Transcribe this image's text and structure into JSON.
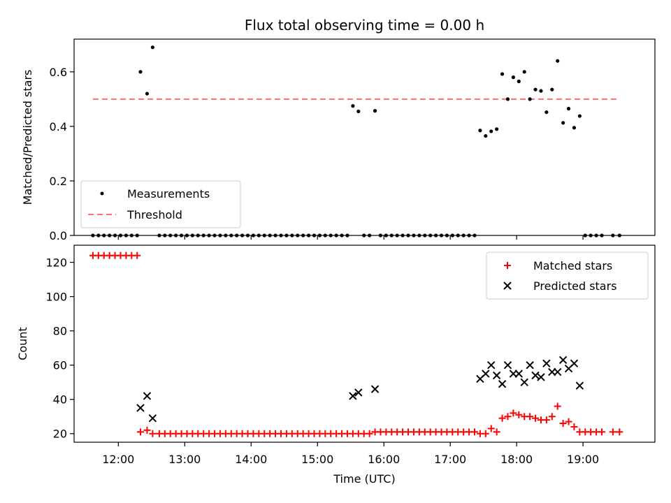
{
  "chart_data": [
    {
      "type": "scatter",
      "title": "Flux total observing time = 0.00 h",
      "xlabel": "",
      "ylabel": "Matched/Predicted stars",
      "xlim": [
        "11:20",
        "20:05"
      ],
      "ylim": [
        0,
        0.72
      ],
      "yticks": [
        "0.0",
        "0.2",
        "0.4",
        "0.6"
      ],
      "legend": {
        "position": "lower-left",
        "entries": [
          "Measurements",
          "Threshold"
        ]
      },
      "colors": {
        "measurements": "#000000",
        "threshold": "#ff6f6f"
      },
      "threshold": {
        "name": "Threshold",
        "value": 0.5,
        "x_range": [
          "11:37",
          "19:33"
        ]
      },
      "series": [
        {
          "name": "Measurements",
          "marker": "dot",
          "points": [
            [
              "11:37",
              0
            ],
            [
              "11:42",
              0
            ],
            [
              "11:47",
              0
            ],
            [
              "11:52",
              0
            ],
            [
              "11:57",
              0
            ],
            [
              "12:02",
              0
            ],
            [
              "12:07",
              0
            ],
            [
              "12:12",
              0
            ],
            [
              "12:17",
              0
            ],
            [
              "12:20",
              0.6
            ],
            [
              "12:26",
              0.52
            ],
            [
              "12:31",
              0.69
            ],
            [
              "12:37",
              0
            ],
            [
              "12:42",
              0
            ],
            [
              "12:47",
              0
            ],
            [
              "12:52",
              0
            ],
            [
              "12:57",
              0
            ],
            [
              "13:02",
              0
            ],
            [
              "13:07",
              0
            ],
            [
              "13:12",
              0
            ],
            [
              "13:17",
              0
            ],
            [
              "13:22",
              0
            ],
            [
              "13:27",
              0
            ],
            [
              "13:32",
              0
            ],
            [
              "13:37",
              0
            ],
            [
              "13:42",
              0
            ],
            [
              "13:47",
              0
            ],
            [
              "13:52",
              0
            ],
            [
              "13:57",
              0
            ],
            [
              "14:02",
              0
            ],
            [
              "14:07",
              0
            ],
            [
              "14:12",
              0
            ],
            [
              "14:17",
              0
            ],
            [
              "14:22",
              0
            ],
            [
              "14:27",
              0
            ],
            [
              "14:32",
              0
            ],
            [
              "14:37",
              0
            ],
            [
              "14:42",
              0
            ],
            [
              "14:47",
              0
            ],
            [
              "14:52",
              0
            ],
            [
              "14:57",
              0
            ],
            [
              "15:02",
              0
            ],
            [
              "15:07",
              0
            ],
            [
              "15:12",
              0
            ],
            [
              "15:17",
              0
            ],
            [
              "15:22",
              0
            ],
            [
              "15:27",
              0
            ],
            [
              "15:32",
              0.475
            ],
            [
              "15:37",
              0.455
            ],
            [
              "15:42",
              0
            ],
            [
              "15:47",
              0
            ],
            [
              "15:52",
              0.457
            ],
            [
              "15:57",
              0
            ],
            [
              "16:02",
              0
            ],
            [
              "16:07",
              0
            ],
            [
              "16:12",
              0
            ],
            [
              "16:17",
              0
            ],
            [
              "16:22",
              0
            ],
            [
              "16:27",
              0
            ],
            [
              "16:32",
              0
            ],
            [
              "16:37",
              0
            ],
            [
              "16:42",
              0
            ],
            [
              "16:47",
              0
            ],
            [
              "16:52",
              0
            ],
            [
              "16:57",
              0
            ],
            [
              "17:02",
              0
            ],
            [
              "17:07",
              0
            ],
            [
              "17:12",
              0
            ],
            [
              "17:17",
              0
            ],
            [
              "17:22",
              0
            ],
            [
              "17:27",
              0.385
            ],
            [
              "17:32",
              0.365
            ],
            [
              "17:37",
              0.382
            ],
            [
              "17:42",
              0.39
            ],
            [
              "17:47",
              0.592
            ],
            [
              "17:52",
              0.5
            ],
            [
              "17:57",
              0.58
            ],
            [
              "18:02",
              0.565
            ],
            [
              "18:07",
              0.6
            ],
            [
              "18:12",
              0.5
            ],
            [
              "18:17",
              0.535
            ],
            [
              "18:22",
              0.53
            ],
            [
              "18:27",
              0.452
            ],
            [
              "18:32",
              0.535
            ],
            [
              "18:37",
              0.64
            ],
            [
              "18:42",
              0.413
            ],
            [
              "18:47",
              0.465
            ],
            [
              "18:52",
              0.395
            ],
            [
              "18:57",
              0.438
            ],
            [
              "19:02",
              0
            ],
            [
              "19:07",
              0
            ],
            [
              "19:12",
              0
            ],
            [
              "19:17",
              0
            ],
            [
              "19:27",
              0
            ],
            [
              "19:33",
              0
            ]
          ]
        }
      ]
    },
    {
      "type": "scatter",
      "title": "",
      "xlabel": "Time (UTC)",
      "ylabel": "Count",
      "xlim": [
        "11:20",
        "20:05"
      ],
      "ylim": [
        15,
        130
      ],
      "yticks": [
        "20",
        "40",
        "60",
        "80",
        "100",
        "120"
      ],
      "xticks": [
        "12:00",
        "13:00",
        "14:00",
        "15:00",
        "16:00",
        "17:00",
        "18:00",
        "19:00"
      ],
      "legend": {
        "position": "top-right",
        "entries": [
          "Matched stars",
          "Predicted stars"
        ]
      },
      "colors": {
        "matched": "#ff0000",
        "predicted": "#000000"
      },
      "series": [
        {
          "name": "Matched stars",
          "marker": "plus",
          "points": [
            [
              "11:37",
              124
            ],
            [
              "11:42",
              124
            ],
            [
              "11:47",
              124
            ],
            [
              "11:52",
              124
            ],
            [
              "11:57",
              124
            ],
            [
              "12:02",
              124
            ],
            [
              "12:07",
              124
            ],
            [
              "12:12",
              124
            ],
            [
              "12:17",
              124
            ],
            [
              "12:20",
              21
            ],
            [
              "12:26",
              22
            ],
            [
              "12:31",
              20
            ],
            [
              "12:37",
              20
            ],
            [
              "12:42",
              20
            ],
            [
              "12:47",
              20
            ],
            [
              "12:52",
              20
            ],
            [
              "12:57",
              20
            ],
            [
              "13:02",
              20
            ],
            [
              "13:07",
              20
            ],
            [
              "13:12",
              20
            ],
            [
              "13:17",
              20
            ],
            [
              "13:22",
              20
            ],
            [
              "13:27",
              20
            ],
            [
              "13:32",
              20
            ],
            [
              "13:37",
              20
            ],
            [
              "13:42",
              20
            ],
            [
              "13:47",
              20
            ],
            [
              "13:52",
              20
            ],
            [
              "13:57",
              20
            ],
            [
              "14:02",
              20
            ],
            [
              "14:07",
              20
            ],
            [
              "14:12",
              20
            ],
            [
              "14:17",
              20
            ],
            [
              "14:22",
              20
            ],
            [
              "14:27",
              20
            ],
            [
              "14:32",
              20
            ],
            [
              "14:37",
              20
            ],
            [
              "14:42",
              20
            ],
            [
              "14:47",
              20
            ],
            [
              "14:52",
              20
            ],
            [
              "14:57",
              20
            ],
            [
              "15:02",
              20
            ],
            [
              "15:07",
              20
            ],
            [
              "15:12",
              20
            ],
            [
              "15:17",
              20
            ],
            [
              "15:22",
              20
            ],
            [
              "15:27",
              20
            ],
            [
              "15:32",
              20
            ],
            [
              "15:37",
              20
            ],
            [
              "15:42",
              20
            ],
            [
              "15:47",
              20
            ],
            [
              "15:52",
              21
            ],
            [
              "15:57",
              21
            ],
            [
              "16:02",
              21
            ],
            [
              "16:07",
              21
            ],
            [
              "16:12",
              21
            ],
            [
              "16:17",
              21
            ],
            [
              "16:22",
              21
            ],
            [
              "16:27",
              21
            ],
            [
              "16:32",
              21
            ],
            [
              "16:37",
              21
            ],
            [
              "16:42",
              21
            ],
            [
              "16:47",
              21
            ],
            [
              "16:52",
              21
            ],
            [
              "16:57",
              21
            ],
            [
              "17:02",
              21
            ],
            [
              "17:07",
              21
            ],
            [
              "17:12",
              21
            ],
            [
              "17:17",
              21
            ],
            [
              "17:22",
              21
            ],
            [
              "17:27",
              20
            ],
            [
              "17:32",
              20
            ],
            [
              "17:37",
              23
            ],
            [
              "17:42",
              21
            ],
            [
              "17:47",
              29
            ],
            [
              "17:52",
              30
            ],
            [
              "17:57",
              32
            ],
            [
              "18:02",
              31
            ],
            [
              "18:07",
              30
            ],
            [
              "18:12",
              30
            ],
            [
              "18:17",
              29
            ],
            [
              "18:22",
              28
            ],
            [
              "18:27",
              28
            ],
            [
              "18:32",
              30
            ],
            [
              "18:37",
              36
            ],
            [
              "18:42",
              26
            ],
            [
              "18:47",
              27
            ],
            [
              "18:52",
              24
            ],
            [
              "18:57",
              21
            ],
            [
              "19:02",
              21
            ],
            [
              "19:07",
              21
            ],
            [
              "19:12",
              21
            ],
            [
              "19:17",
              21
            ],
            [
              "19:27",
              21
            ],
            [
              "19:33",
              21
            ]
          ]
        },
        {
          "name": "Predicted stars",
          "marker": "x",
          "points": [
            [
              "12:20",
              35
            ],
            [
              "12:26",
              42
            ],
            [
              "12:31",
              29
            ],
            [
              "15:32",
              42
            ],
            [
              "15:37",
              44
            ],
            [
              "15:52",
              46
            ],
            [
              "17:27",
              52
            ],
            [
              "17:32",
              55
            ],
            [
              "17:37",
              60
            ],
            [
              "17:42",
              54
            ],
            [
              "17:47",
              49
            ],
            [
              "17:52",
              60
            ],
            [
              "17:57",
              55
            ],
            [
              "18:02",
              55
            ],
            [
              "18:07",
              50
            ],
            [
              "18:12",
              60
            ],
            [
              "18:17",
              54
            ],
            [
              "18:22",
              53
            ],
            [
              "18:27",
              61
            ],
            [
              "18:32",
              56
            ],
            [
              "18:37",
              56
            ],
            [
              "18:42",
              63
            ],
            [
              "18:47",
              58
            ],
            [
              "18:52",
              61
            ],
            [
              "18:57",
              48
            ]
          ]
        }
      ]
    }
  ]
}
